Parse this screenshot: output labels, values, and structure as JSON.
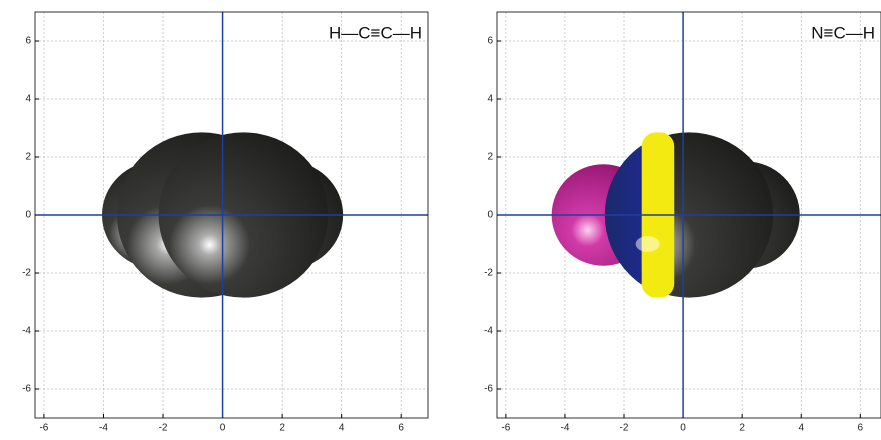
{
  "chart_data": [
    {
      "type": "molecule",
      "formula": "H—C≡C—H",
      "xlim": [
        -6.3,
        6.9
      ],
      "ylim": [
        -7,
        7
      ],
      "xticks": [
        -6,
        -4,
        -2,
        0,
        2,
        4,
        6
      ],
      "yticks": [
        -6,
        -4,
        -2,
        0,
        2,
        4,
        6
      ],
      "grid": true
    },
    {
      "type": "molecule",
      "formula": "N≡C—H",
      "xlim": [
        -6.3,
        6.7
      ],
      "ylim": [
        -7,
        7
      ],
      "xticks": [
        -6,
        -4,
        -2,
        0,
        2,
        4,
        6
      ],
      "yticks": [
        -6,
        -4,
        -2,
        0,
        2,
        4,
        6
      ],
      "grid": true
    }
  ]
}
